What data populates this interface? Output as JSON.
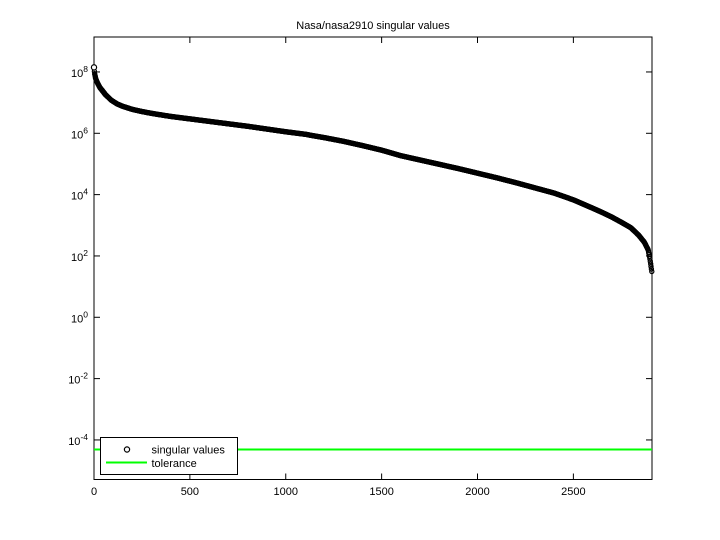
{
  "figure": {
    "background": "#ffffff",
    "axes_background": "#ffffff",
    "axes_border_color": "#000000"
  },
  "legend": {
    "items": [
      {
        "label": "singular values",
        "sample": "circle-marker",
        "color": "#000000"
      },
      {
        "label": "tolerance",
        "sample": "line",
        "color": "#00ff00"
      }
    ],
    "position": "lower-left"
  },
  "chart_data": {
    "type": "scatter",
    "title": "Nasa/nasa2910 singular values",
    "xlabel": "",
    "ylabel": "",
    "grid": false,
    "legend_position": "lower-left",
    "x_ticks": [
      0,
      500,
      1000,
      1500,
      2000,
      2500
    ],
    "y_tick_base": "10",
    "y_tick_exponents": [
      "8",
      "6",
      "4",
      "2",
      "0",
      "-2",
      "-4"
    ],
    "xlim": [
      0,
      2910
    ],
    "ylim_log10": [
      -5.29,
      9.14
    ],
    "n_singular_values": 2910,
    "marker": "o",
    "marker_color": "#000000",
    "tolerance_color": "#00ff00",
    "tolerance_value_log10": -4.31,
    "tolerance_value_approx": "5e-05",
    "series": [
      {
        "name": "singular values",
        "note": "log10 of singular value vs index; control points interpolated",
        "control_points_log10": [
          [
            0,
            8.15
          ],
          [
            3,
            7.95
          ],
          [
            8,
            7.8
          ],
          [
            15,
            7.68
          ],
          [
            30,
            7.5
          ],
          [
            60,
            7.26
          ],
          [
            90,
            7.08
          ],
          [
            120,
            6.96
          ],
          [
            150,
            6.88
          ],
          [
            200,
            6.78
          ],
          [
            250,
            6.71
          ],
          [
            300,
            6.65
          ],
          [
            400,
            6.55
          ],
          [
            500,
            6.47
          ],
          [
            600,
            6.39
          ],
          [
            700,
            6.31
          ],
          [
            800,
            6.23
          ],
          [
            900,
            6.14
          ],
          [
            1000,
            6.05
          ],
          [
            1100,
            5.97
          ],
          [
            1200,
            5.86
          ],
          [
            1300,
            5.74
          ],
          [
            1400,
            5.6
          ],
          [
            1500,
            5.45
          ],
          [
            1600,
            5.27
          ],
          [
            1700,
            5.13
          ],
          [
            1800,
            4.99
          ],
          [
            1900,
            4.85
          ],
          [
            2000,
            4.7
          ],
          [
            2100,
            4.55
          ],
          [
            2200,
            4.39
          ],
          [
            2300,
            4.22
          ],
          [
            2400,
            4.05
          ],
          [
            2500,
            3.83
          ],
          [
            2600,
            3.56
          ],
          [
            2650,
            3.42
          ],
          [
            2700,
            3.27
          ],
          [
            2750,
            3.1
          ],
          [
            2800,
            2.92
          ],
          [
            2840,
            2.68
          ],
          [
            2870,
            2.45
          ],
          [
            2890,
            2.2
          ],
          [
            2898,
            1.95
          ],
          [
            2904,
            1.7
          ],
          [
            2910,
            1.45
          ]
        ]
      },
      {
        "name": "tolerance",
        "value_log10": -4.31
      }
    ]
  }
}
